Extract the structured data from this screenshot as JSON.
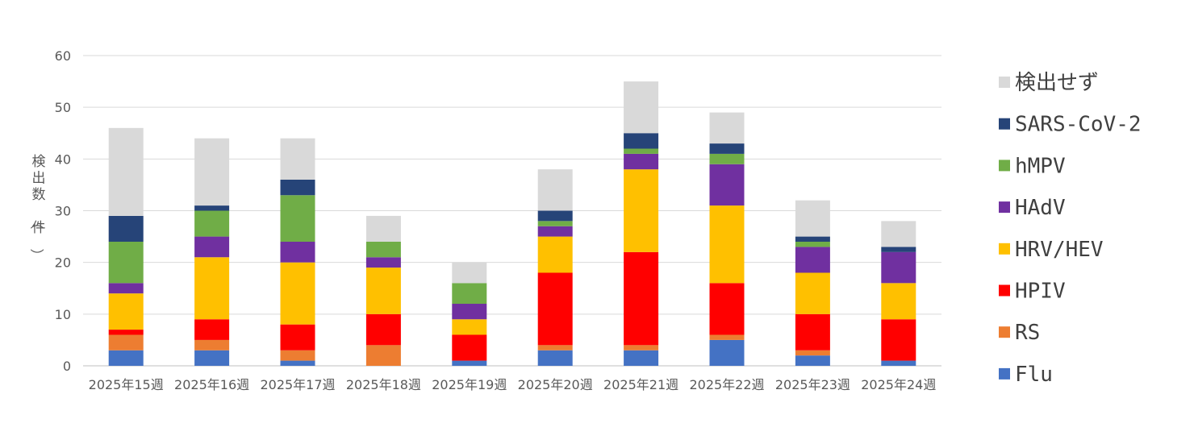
{
  "chart_data": {
    "type": "bar",
    "stacked": true,
    "title": "",
    "xlabel": "",
    "ylabel": "検出数（件）",
    "ylim": [
      0,
      60
    ],
    "yticks": [
      0,
      10,
      20,
      30,
      40,
      50,
      60
    ],
    "grid": true,
    "legend_position": "right",
    "categories": [
      "2025年15週",
      "2025年16週",
      "2025年17週",
      "2025年18週",
      "2025年19週",
      "2025年20週",
      "2025年21週",
      "2025年22週",
      "2025年23週",
      "2025年24週"
    ],
    "series": [
      {
        "name": "Flu",
        "color": "#4472C4",
        "values": [
          3,
          3,
          1,
          0,
          1,
          3,
          3,
          5,
          2,
          1
        ]
      },
      {
        "name": "RS",
        "color": "#ED7D31",
        "values": [
          3,
          2,
          2,
          4,
          0,
          1,
          1,
          1,
          1,
          0
        ]
      },
      {
        "name": "HPIV",
        "color": "#FF0000",
        "values": [
          1,
          4,
          5,
          6,
          5,
          14,
          18,
          10,
          7,
          8
        ]
      },
      {
        "name": "HRV/HEV",
        "color": "#FFC000",
        "values": [
          7,
          12,
          12,
          9,
          3,
          7,
          16,
          15,
          8,
          7
        ]
      },
      {
        "name": "HAdV",
        "color": "#7030A0",
        "values": [
          2,
          4,
          4,
          2,
          3,
          2,
          3,
          8,
          5,
          6
        ]
      },
      {
        "name": "hMPV",
        "color": "#70AD47",
        "values": [
          8,
          5,
          9,
          3,
          4,
          1,
          1,
          2,
          1,
          0
        ]
      },
      {
        "name": "SARS-CoV-2",
        "color": "#264478",
        "values": [
          5,
          1,
          3,
          0,
          0,
          2,
          3,
          2,
          1,
          1
        ]
      },
      {
        "name": "検出せず",
        "color": "#D9D9D9",
        "values": [
          17,
          13,
          8,
          5,
          4,
          8,
          10,
          6,
          7,
          5
        ]
      }
    ]
  }
}
